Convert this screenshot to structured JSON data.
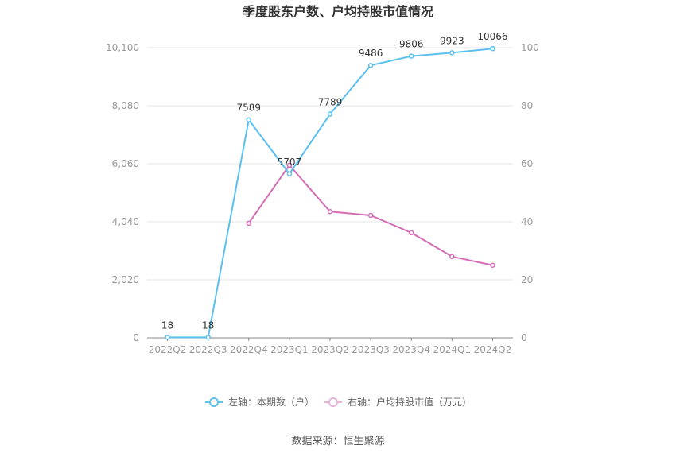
{
  "chart_data": {
    "type": "line",
    "title": "季度股东户数、户均持股市值情况",
    "categories": [
      "2022Q2",
      "2022Q3",
      "2022Q4",
      "2023Q1",
      "2023Q2",
      "2023Q3",
      "2023Q4",
      "2024Q1",
      "2024Q2"
    ],
    "left_axis": {
      "ticks": [
        "0",
        "2,020",
        "4,040",
        "6,060",
        "8,080",
        "10,100"
      ],
      "range": [
        0,
        10100
      ]
    },
    "right_axis": {
      "ticks": [
        "0",
        "20",
        "40",
        "60",
        "80",
        "100"
      ],
      "range": [
        0,
        100
      ]
    },
    "series": [
      {
        "name": "左轴：本期数（户）",
        "axis": "left",
        "color": "#5bc0f0",
        "values": [
          18,
          18,
          7589,
          5707,
          7789,
          9486,
          9806,
          9923,
          10066
        ],
        "labels": [
          "18",
          "18",
          "7589",
          "5707",
          "7789",
          "9486",
          "9806",
          "9923",
          "10066"
        ]
      },
      {
        "name": "右轴：户均持股市值（万元）",
        "axis": "right",
        "color": "#d36db6",
        "values": [
          null,
          null,
          39.5,
          59.5,
          43.5,
          42.2,
          36.2,
          28.0,
          25.0
        ]
      }
    ],
    "grid": true,
    "legend_position": "bottom"
  },
  "source_text": "数据来源：恒生聚源"
}
